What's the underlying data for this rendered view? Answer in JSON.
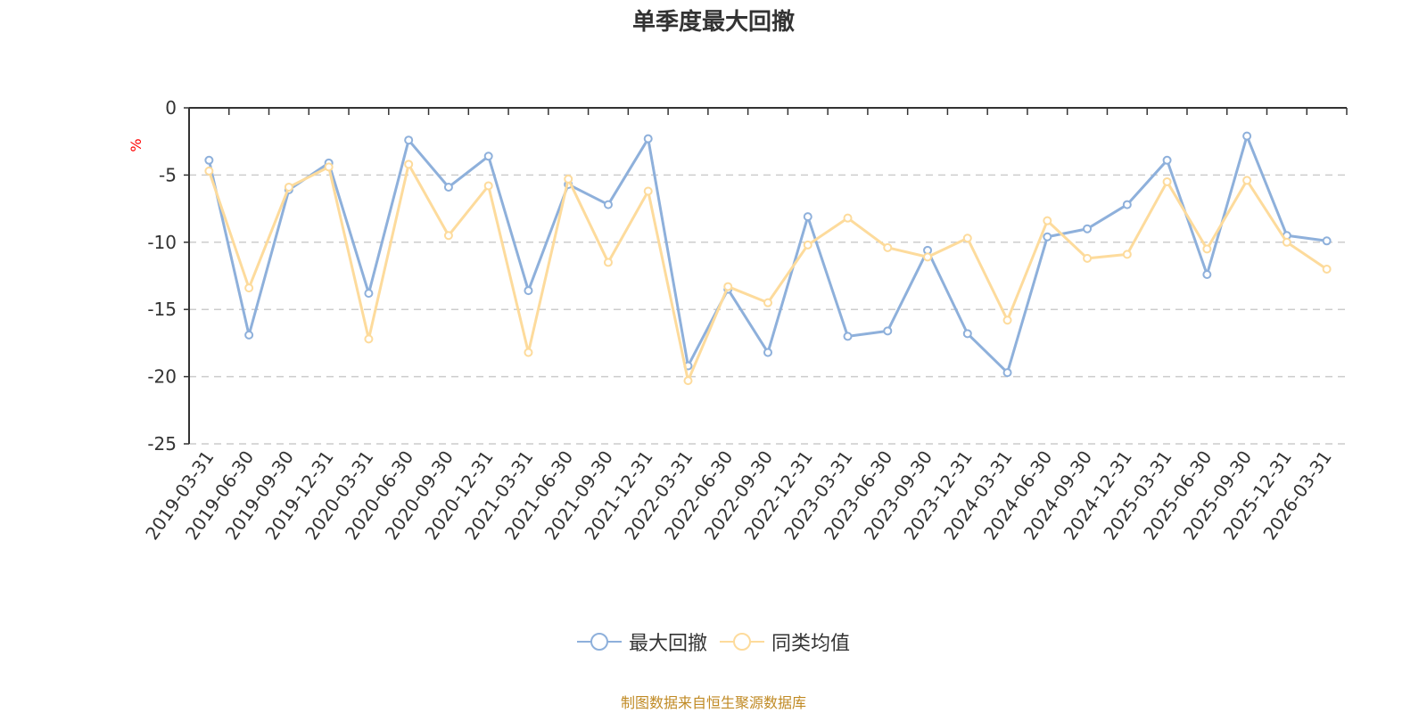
{
  "chart_data": {
    "type": "line",
    "title": "单季度最大回撤",
    "ylabel": "%",
    "xlabel": "",
    "ylim": [
      -25,
      0
    ],
    "yticks": [
      0,
      -5,
      -10,
      -15,
      -20,
      -25
    ],
    "grid": "horizontal-dashed",
    "legend_position": "bottom-center",
    "categories": [
      "2019-03-31",
      "2019-06-30",
      "2019-09-30",
      "2019-12-31",
      "2020-03-31",
      "2020-06-30",
      "2020-09-30",
      "2020-12-31",
      "2021-03-31",
      "2021-06-30",
      "2021-09-30",
      "2021-12-31",
      "2022-03-31",
      "2022-06-30",
      "2022-09-30",
      "2022-12-31",
      "2023-03-31",
      "2023-06-30",
      "2023-09-30",
      "2023-12-31",
      "2024-03-31",
      "2024-06-30",
      "2024-09-30",
      "2024-12-31",
      "2025-03-31",
      "2025-06-30",
      "2025-09-30",
      "2025-12-31",
      "2026-03-31"
    ],
    "series": [
      {
        "name": "最大回撤",
        "color": "#8eb0db",
        "values": [
          -3.9,
          -16.9,
          -6.1,
          -4.1,
          -13.8,
          -2.4,
          -5.9,
          -3.6,
          -13.6,
          -5.7,
          -7.2,
          -2.3,
          -19.2,
          -13.5,
          -18.2,
          -8.1,
          -17.0,
          -16.6,
          -10.6,
          -16.8,
          -19.7,
          -9.6,
          -9.0,
          -7.2,
          -3.9,
          -12.4,
          -2.1,
          -9.5,
          -9.9
        ]
      },
      {
        "name": "同类均值",
        "color": "#fddb9c",
        "values": [
          -4.7,
          -13.4,
          -5.9,
          -4.4,
          -17.2,
          -4.2,
          -9.5,
          -5.8,
          -18.2,
          -5.3,
          -11.5,
          -6.2,
          -20.3,
          -13.3,
          -14.5,
          -10.2,
          -8.2,
          -10.4,
          -11.1,
          -9.7,
          -15.8,
          -8.4,
          -11.2,
          -10.9,
          -5.5,
          -10.5,
          -5.4,
          -10.0,
          -12.0
        ]
      }
    ]
  },
  "source": "制图数据来自恒生聚源数据库"
}
